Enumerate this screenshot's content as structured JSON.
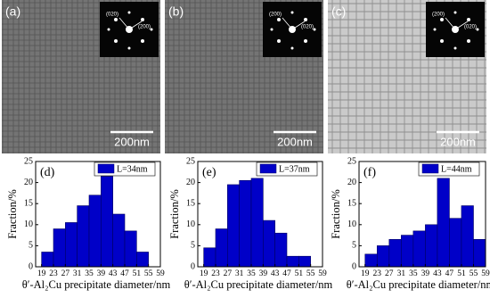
{
  "images": [
    {
      "label": "(a)",
      "scale_bar": "200nm",
      "inset_labels": [
        "(020)",
        "(200)"
      ]
    },
    {
      "label": "(b)",
      "scale_bar": "200nm",
      "inset_labels": [
        "(200)",
        "(020)"
      ]
    },
    {
      "label": "(c)",
      "scale_bar": "200nm",
      "inset_labels": [
        "(200)",
        "(020)"
      ]
    }
  ],
  "chart_data": [
    {
      "type": "histogram",
      "panel": "(d)",
      "y_label": "Fraction/%",
      "x_label": "θ′-Al₂Cu precipitate diameter/nm",
      "bins": [
        19,
        23,
        27,
        31,
        35,
        39,
        43,
        47,
        51,
        55
      ],
      "series": [
        {
          "name": "L=34nm",
          "color": "#0000c8",
          "values": [
            3.5,
            9,
            10.5,
            14.5,
            17,
            21.5,
            12.5,
            8.5,
            3.5
          ]
        }
      ],
      "xlim": [
        17,
        59
      ],
      "xticks": [
        19,
        23,
        27,
        31,
        35,
        39,
        43,
        47,
        51,
        55,
        59
      ],
      "ylim": [
        0,
        25
      ],
      "yticks": [
        0,
        5,
        10,
        15,
        20,
        25
      ]
    },
    {
      "type": "histogram",
      "panel": "(e)",
      "y_label": "Fraction/%",
      "x_label": "θ′-Al₂Cu precipitate diameter/nm",
      "bins": [
        19,
        23,
        27,
        31,
        35,
        39,
        43,
        47,
        51,
        55
      ],
      "series": [
        {
          "name": "L=37nm",
          "color": "#0000c8",
          "values": [
            4.5,
            9,
            19.5,
            20.5,
            21,
            11,
            8,
            2.5,
            2.5
          ]
        }
      ],
      "xlim": [
        17,
        59
      ],
      "xticks": [
        19,
        23,
        27,
        31,
        35,
        39,
        43,
        47,
        51,
        55,
        59
      ],
      "ylim": [
        0,
        25
      ],
      "yticks": [
        0,
        5,
        10,
        15,
        20,
        25
      ]
    },
    {
      "type": "histogram",
      "panel": "(f)",
      "y_label": "Fraction/%",
      "x_label": "θ′-Al₂Cu precipitate diameter/nm",
      "bins": [
        19,
        23,
        27,
        31,
        35,
        39,
        43,
        47,
        51,
        55,
        59
      ],
      "series": [
        {
          "name": "L=44nm",
          "color": "#0000c8",
          "values": [
            3,
            5,
            6.5,
            7.5,
            8.5,
            10,
            21,
            11.5,
            14.5,
            6.5
          ]
        }
      ],
      "xlim": [
        17,
        59
      ],
      "xticks": [
        19,
        23,
        27,
        31,
        35,
        39,
        43,
        47,
        51,
        55,
        59
      ],
      "ylim": [
        0,
        25
      ],
      "yticks": [
        0,
        5,
        10,
        15,
        20,
        25
      ]
    }
  ]
}
